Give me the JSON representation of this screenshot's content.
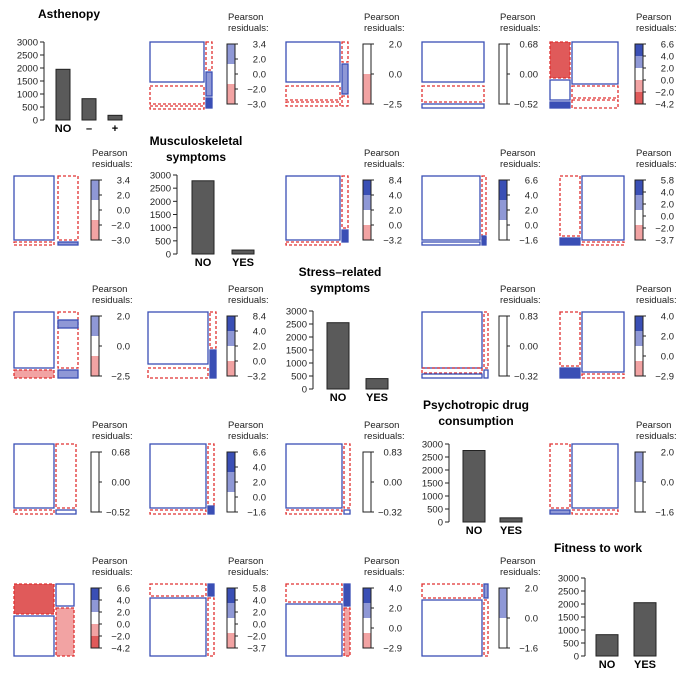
{
  "colors": {
    "bar_fill": "#5a5a5a",
    "mosaic_blue": "#3a4fb5",
    "mosaic_blue_light": "#8f98d6",
    "mosaic_red": "#e05a5a",
    "mosaic_red_light": "#f2a3a3",
    "dashed_red": "#e03030"
  },
  "legend_header": [
    "Pearson",
    "residuals:"
  ],
  "variables": [
    "Asthenopy",
    "Musculoskeletal symptoms",
    "Stress-related symptoms",
    "Psychotropic drug consumption",
    "Fitness to work"
  ],
  "chart_data": [
    {
      "type": "bar",
      "name": "diag-0",
      "title": [
        "Asthenopy"
      ],
      "categories": [
        "NO",
        "–",
        "+"
      ],
      "values": [
        1950,
        820,
        180
      ],
      "ylim": [
        0,
        3000
      ],
      "yticks": [
        "0",
        "500",
        "1000",
        "1500",
        "2000",
        "2500",
        "3000"
      ]
    },
    {
      "type": "bar",
      "name": "diag-1",
      "title": [
        "Musculoskeletal",
        "symptoms"
      ],
      "categories": [
        "NO",
        "YES"
      ],
      "values": [
        2780,
        150
      ],
      "ylim": [
        0,
        3000
      ],
      "yticks": [
        "0",
        "500",
        "1000",
        "1500",
        "2000",
        "2500",
        "3000"
      ]
    },
    {
      "type": "bar",
      "name": "diag-2",
      "title": [
        "Stress–related",
        "symptoms"
      ],
      "categories": [
        "NO",
        "YES"
      ],
      "values": [
        2550,
        400
      ],
      "ylim": [
        0,
        3000
      ],
      "yticks": [
        "0",
        "500",
        "1000",
        "1500",
        "2000",
        "2500",
        "3000"
      ]
    },
    {
      "type": "bar",
      "name": "diag-3",
      "title": [
        "Psychotropic drug",
        "consumption"
      ],
      "categories": [
        "NO",
        "YES"
      ],
      "values": [
        2750,
        160
      ],
      "ylim": [
        0,
        3000
      ],
      "yticks": [
        "0",
        "500",
        "1000",
        "1500",
        "2000",
        "2500",
        "3000"
      ]
    },
    {
      "type": "bar",
      "name": "diag-4",
      "title": [
        "Fitness to work"
      ],
      "categories": [
        "NO",
        "YES"
      ],
      "values": [
        820,
        2050
      ],
      "ylim": [
        0,
        3000
      ],
      "yticks": [
        "0",
        "500",
        "1000",
        "1500",
        "2000",
        "2500",
        "3000"
      ]
    }
  ],
  "mosaics": [
    {
      "name": "m-0-1",
      "legend": [
        "3.4",
        "2.0",
        "0.0",
        "−2.0",
        "−3.0"
      ],
      "legend_fills": [
        "b",
        "w",
        "r"
      ]
    },
    {
      "name": "m-0-2",
      "legend": [
        "2.0",
        "0.0",
        "−2.5"
      ],
      "legend_fills": [
        "w",
        "r"
      ]
    },
    {
      "name": "m-0-3",
      "legend": [
        "0.68",
        "0.00",
        "−0.52"
      ],
      "legend_fills": [
        "w"
      ]
    },
    {
      "name": "m-0-4",
      "legend": [
        "6.6",
        "4.0",
        "2.0",
        "0.0",
        "−2.0",
        "−4.2"
      ],
      "legend_fills": [
        "B",
        "b",
        "w",
        "r",
        "R"
      ]
    },
    {
      "name": "m-1-0",
      "legend": [
        "3.4",
        "2.0",
        "0.0",
        "−2.0",
        "−3.0"
      ],
      "legend_fills": [
        "b",
        "w",
        "r"
      ]
    },
    {
      "name": "m-1-2",
      "legend": [
        "8.4",
        "4.0",
        "2.0",
        "0.0",
        "−3.2"
      ],
      "legend_fills": [
        "B",
        "b",
        "w",
        "r"
      ]
    },
    {
      "name": "m-1-3",
      "legend": [
        "6.6",
        "4.0",
        "2.0",
        "0.0",
        "−1.6"
      ],
      "legend_fills": [
        "B",
        "b",
        "w"
      ]
    },
    {
      "name": "m-1-4",
      "legend": [
        "5.8",
        "4.0",
        "2.0",
        "0.0",
        "−2.0",
        "−3.7"
      ],
      "legend_fills": [
        "B",
        "b",
        "w",
        "r"
      ]
    },
    {
      "name": "m-2-0",
      "legend": [
        "2.0",
        "0.0",
        "−2.5"
      ],
      "legend_fills": [
        "b",
        "w",
        "r"
      ]
    },
    {
      "name": "m-2-1",
      "legend": [
        "8.4",
        "4.0",
        "2.0",
        "0.0",
        "−3.2"
      ],
      "legend_fills": [
        "B",
        "b",
        "w",
        "r"
      ]
    },
    {
      "name": "m-2-3",
      "legend": [
        "0.83",
        "0.00",
        "−0.32"
      ],
      "legend_fills": [
        "w"
      ]
    },
    {
      "name": "m-2-4",
      "legend": [
        "4.0",
        "2.0",
        "0.0",
        "−2.9"
      ],
      "legend_fills": [
        "B",
        "b",
        "w",
        "r"
      ]
    },
    {
      "name": "m-3-0",
      "legend": [
        "0.68",
        "0.00",
        "−0.52"
      ],
      "legend_fills": [
        "w"
      ]
    },
    {
      "name": "m-3-1",
      "legend": [
        "6.6",
        "4.0",
        "2.0",
        "0.0",
        "−1.6"
      ],
      "legend_fills": [
        "B",
        "b",
        "w"
      ]
    },
    {
      "name": "m-3-2",
      "legend": [
        "0.83",
        "0.00",
        "−0.32"
      ],
      "legend_fills": [
        "w"
      ]
    },
    {
      "name": "m-3-4",
      "legend": [
        "2.0",
        "0.0",
        "−1.6"
      ],
      "legend_fills": [
        "b",
        "w"
      ]
    },
    {
      "name": "m-4-0",
      "legend": [
        "6.6",
        "4.0",
        "2.0",
        "0.0",
        "−2.0",
        "−4.2"
      ],
      "legend_fills": [
        "B",
        "b",
        "w",
        "r",
        "R"
      ]
    },
    {
      "name": "m-4-1",
      "legend": [
        "5.8",
        "4.0",
        "2.0",
        "0.0",
        "−2.0",
        "−3.7"
      ],
      "legend_fills": [
        "B",
        "b",
        "w",
        "r"
      ]
    },
    {
      "name": "m-4-2",
      "legend": [
        "4.0",
        "2.0",
        "0.0",
        "−2.9"
      ],
      "legend_fills": [
        "B",
        "b",
        "w",
        "r"
      ]
    },
    {
      "name": "m-4-3",
      "legend": [
        "2.0",
        "0.0",
        "−1.6"
      ],
      "legend_fills": [
        "b",
        "w"
      ]
    }
  ]
}
